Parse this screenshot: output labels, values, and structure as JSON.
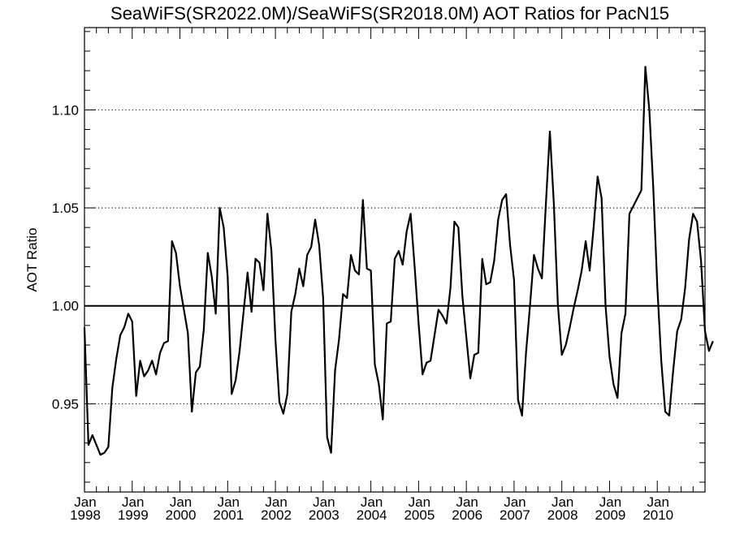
{
  "chart_data": {
    "type": "line",
    "title": "SeaWiFS(SR2022.0M)/SeaWiFS(SR2018.0M)  AOT Ratios for PacN15",
    "xlabel": "",
    "ylabel": "AOT Ratio",
    "ylim": [
      0.905,
      1.142
    ],
    "xlim": [
      1998.0,
      2011.0
    ],
    "grid": "horizontal dotted at y-ticks",
    "reference_line": 1.0,
    "yticks": [
      {
        "value": 0.95,
        "label": "0.95"
      },
      {
        "value": 1.0,
        "label": "1.00"
      },
      {
        "value": 1.05,
        "label": "1.05"
      },
      {
        "value": 1.1,
        "label": "1.10"
      }
    ],
    "xticks": [
      {
        "value": 1998,
        "month": "Jan",
        "year": "1998"
      },
      {
        "value": 1999,
        "month": "Jan",
        "year": "1999"
      },
      {
        "value": 2000,
        "month": "Jan",
        "year": "2000"
      },
      {
        "value": 2001,
        "month": "Jan",
        "year": "2001"
      },
      {
        "value": 2002,
        "month": "Jan",
        "year": "2002"
      },
      {
        "value": 2003,
        "month": "Jan",
        "year": "2003"
      },
      {
        "value": 2004,
        "month": "Jan",
        "year": "2004"
      },
      {
        "value": 2005,
        "month": "Jan",
        "year": "2005"
      },
      {
        "value": 2006,
        "month": "Jan",
        "year": "2006"
      },
      {
        "value": 2007,
        "month": "Jan",
        "year": "2007"
      },
      {
        "value": 2008,
        "month": "Jan",
        "year": "2008"
      },
      {
        "value": 2009,
        "month": "Jan",
        "year": "2009"
      },
      {
        "value": 2010,
        "month": "Jan",
        "year": "2010"
      }
    ],
    "series": [
      {
        "color": "#000000",
        "start_year": 1998,
        "start_month": 1,
        "interval": "monthly",
        "values": [
          0.989,
          0.929,
          0.934,
          0.929,
          0.924,
          0.925,
          0.928,
          0.958,
          0.973,
          0.985,
          0.989,
          0.996,
          0.992,
          0.954,
          0.972,
          0.964,
          0.967,
          0.972,
          0.965,
          0.976,
          0.981,
          0.982,
          1.033,
          1.027,
          1.01,
          0.998,
          0.986,
          0.946,
          0.966,
          0.969,
          0.988,
          1.027,
          1.015,
          0.996,
          1.05,
          1.04,
          1.015,
          0.955,
          0.962,
          0.977,
          0.997,
          1.017,
          0.997,
          1.024,
          1.022,
          1.008,
          1.047,
          1.028,
          0.983,
          0.951,
          0.945,
          0.955,
          0.997,
          1.006,
          1.019,
          1.01,
          1.026,
          1.03,
          1.044,
          1.031,
          1.004,
          0.933,
          0.925,
          0.967,
          0.983,
          1.006,
          1.004,
          1.026,
          1.018,
          1.016,
          1.054,
          1.019,
          1.018,
          0.97,
          0.96,
          0.942,
          0.991,
          0.992,
          1.024,
          1.028,
          1.021,
          1.038,
          1.047,
          1.02,
          0.991,
          0.965,
          0.971,
          0.972,
          0.985,
          0.998,
          0.995,
          0.991,
          1.009,
          1.043,
          1.04,
          1.005,
          0.984,
          0.963,
          0.975,
          0.976,
          1.024,
          1.011,
          1.012,
          1.023,
          1.044,
          1.054,
          1.057,
          1.031,
          1.013,
          0.952,
          0.944,
          0.976,
          1.0,
          1.026,
          1.019,
          1.014,
          1.052,
          1.089,
          1.052,
          1.001,
          0.975,
          0.98,
          0.989,
          0.999,
          1.008,
          1.018,
          1.033,
          1.018,
          1.04,
          1.066,
          1.055,
          1.0,
          0.974,
          0.96,
          0.953,
          0.986,
          0.996,
          1.047,
          1.051,
          1.055,
          1.059,
          1.122,
          1.1,
          1.06,
          1.01,
          0.972,
          0.946,
          0.944,
          0.967,
          0.987,
          0.993,
          1.009,
          1.034,
          1.047,
          1.043,
          1.023,
          0.987,
          0.977,
          0.982
        ]
      }
    ]
  }
}
